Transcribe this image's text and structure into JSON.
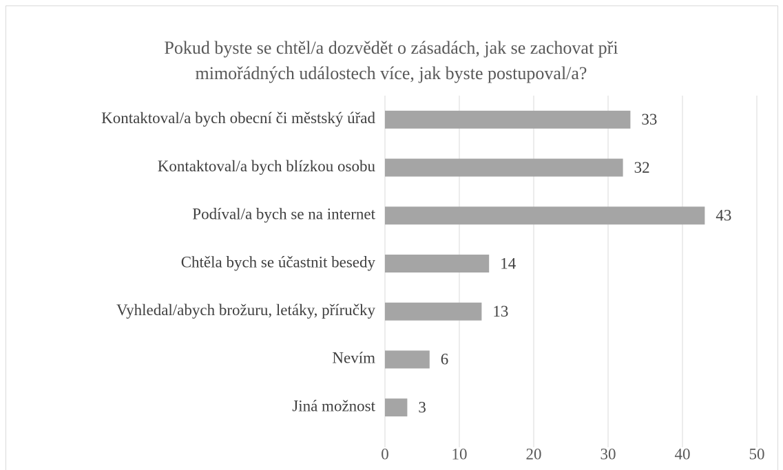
{
  "chart_data": {
    "type": "bar",
    "orientation": "horizontal",
    "title": [
      "Pokud byste se chtěl/a dozvědět o zásadách, jak se zachovat při",
      "mimořádných událostech více, jak byste postupoval/a?"
    ],
    "categories": [
      "Kontaktoval/a bych obecní či městský úřad",
      "Kontaktoval/a bych blízkou osobu",
      "Podíval/a bych se na internet",
      "Chtěla bych se účastnit besedy",
      "Vyhledal/abych brožuru, letáky, příručky",
      "Nevím",
      "Jiná možnost"
    ],
    "values": [
      33,
      32,
      43,
      14,
      13,
      6,
      3
    ],
    "color": "#a5a5a5",
    "xlim": [
      0,
      50
    ],
    "xticks": [
      0,
      10,
      20,
      30,
      40,
      50
    ],
    "grid": true
  }
}
